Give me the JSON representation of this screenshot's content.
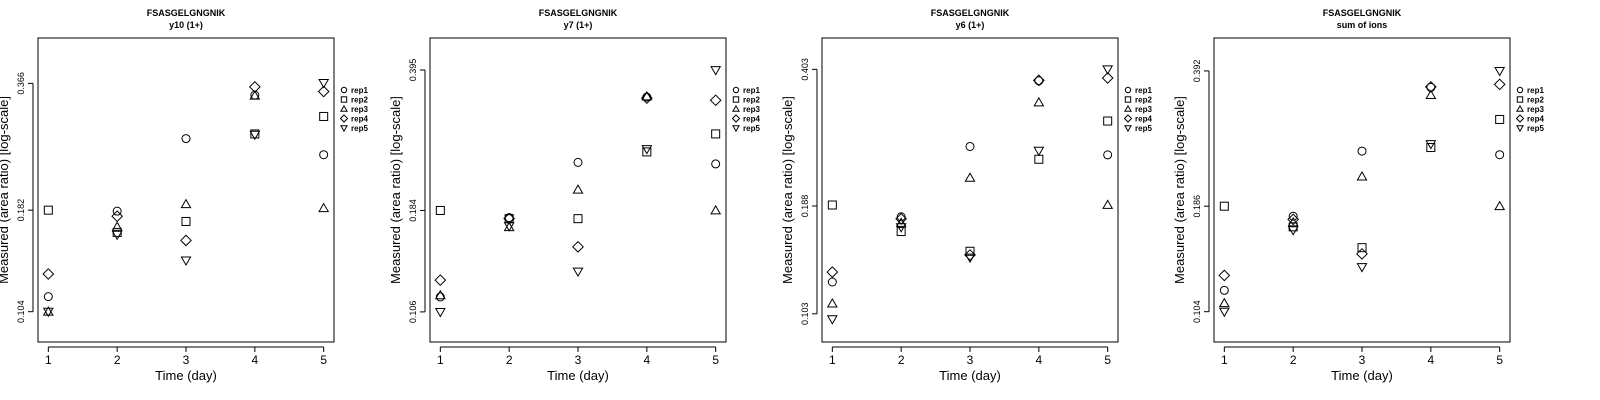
{
  "chart_data": [
    {
      "type": "scatter",
      "title": "FSASGELGNGNIK",
      "subtitle": "y10 (1+)",
      "xlabel": "Time (day)",
      "ylabel": "Measured (area ratio) [log-scale]",
      "x_ticks": [
        "1",
        "2",
        "3",
        "4",
        "5"
      ],
      "y_ticks": [
        {
          "value": 0.104,
          "label": "0.104"
        },
        {
          "value": 0.182,
          "label": "0.182"
        },
        {
          "value": 0.366,
          "label": "0.366"
        }
      ],
      "xlim": [
        0.85,
        5.15
      ],
      "ylim": [
        0.088,
        0.47
      ],
      "legend": [
        "rep1",
        "rep2",
        "rep3",
        "rep4",
        "rep5"
      ],
      "legend_placement": "right",
      "series": [
        {
          "name": "rep1",
          "marker": "circle",
          "points": [
            [
              1,
              0.113
            ],
            [
              2,
              0.181
            ],
            [
              3,
              0.27
            ],
            [
              4,
              0.343
            ],
            [
              5,
              0.247
            ]
          ]
        },
        {
          "name": "rep2",
          "marker": "square",
          "points": [
            [
              1,
              0.182
            ],
            [
              2,
              0.161
            ],
            [
              3,
              0.171
            ],
            [
              4,
              0.277
            ],
            [
              5,
              0.305
            ]
          ]
        },
        {
          "name": "rep3",
          "marker": "triangle-up",
          "points": [
            [
              1,
              0.104
            ],
            [
              2,
              0.166
            ],
            [
              3,
              0.188
            ],
            [
              4,
              0.342
            ],
            [
              5,
              0.184
            ]
          ]
        },
        {
          "name": "rep4",
          "marker": "diamond",
          "points": [
            [
              1,
              0.128
            ],
            [
              2,
              0.176
            ],
            [
              3,
              0.154
            ],
            [
              4,
              0.359
            ],
            [
              5,
              0.35
            ]
          ]
        },
        {
          "name": "rep5",
          "marker": "triangle-down",
          "points": [
            [
              1,
              0.104
            ],
            [
              2,
              0.159
            ],
            [
              3,
              0.138
            ],
            [
              4,
              0.276
            ],
            [
              5,
              0.367
            ]
          ]
        }
      ]
    },
    {
      "type": "scatter",
      "title": "FSASGELGNGNIK",
      "subtitle": "y7 (1+)",
      "xlabel": "Time (day)",
      "ylabel": "Measured (area ratio) [log-scale]",
      "x_ticks": [
        "1",
        "2",
        "3",
        "4",
        "5"
      ],
      "y_ticks": [
        {
          "value": 0.106,
          "label": "0.106"
        },
        {
          "value": 0.184,
          "label": "0.184"
        },
        {
          "value": 0.395,
          "label": "0.395"
        }
      ],
      "xlim": [
        0.85,
        5.15
      ],
      "ylim": [
        0.09,
        0.47
      ],
      "legend": [
        "rep1",
        "rep2",
        "rep3",
        "rep4",
        "rep5"
      ],
      "legend_placement": "right",
      "series": [
        {
          "name": "rep1",
          "marker": "circle",
          "points": [
            [
              1,
              0.115
            ],
            [
              2,
              0.177
            ],
            [
              3,
              0.239
            ],
            [
              4,
              0.341
            ],
            [
              5,
              0.237
            ]
          ]
        },
        {
          "name": "rep2",
          "marker": "square",
          "points": [
            [
              1,
              0.184
            ],
            [
              2,
              0.176
            ],
            [
              3,
              0.176
            ],
            [
              4,
              0.253
            ],
            [
              5,
              0.279
            ]
          ]
        },
        {
          "name": "rep3",
          "marker": "triangle-up",
          "points": [
            [
              1,
              0.116
            ],
            [
              2,
              0.168
            ],
            [
              3,
              0.206
            ],
            [
              4,
              0.342
            ],
            [
              5,
              0.184
            ]
          ]
        },
        {
          "name": "rep4",
          "marker": "diamond",
          "points": [
            [
              1,
              0.126
            ],
            [
              2,
              0.176
            ],
            [
              3,
              0.151
            ],
            [
              4,
              0.339
            ],
            [
              5,
              0.335
            ]
          ]
        },
        {
          "name": "rep5",
          "marker": "triangle-down",
          "points": [
            [
              1,
              0.106
            ],
            [
              2,
              0.169
            ],
            [
              3,
              0.132
            ],
            [
              4,
              0.257
            ],
            [
              5,
              0.395
            ]
          ]
        }
      ]
    },
    {
      "type": "scatter",
      "title": "FSASGELGNGNIK",
      "subtitle": "y6 (1+)",
      "xlabel": "Time (day)",
      "ylabel": "Measured (area ratio) [log-scale]",
      "x_ticks": [
        "1",
        "2",
        "3",
        "4",
        "5"
      ],
      "y_ticks": [
        {
          "value": 0.103,
          "label": "0.103"
        },
        {
          "value": 0.188,
          "label": "0.188"
        },
        {
          "value": 0.403,
          "label": "0.403"
        }
      ],
      "xlim": [
        0.85,
        5.15
      ],
      "ylim": [
        0.088,
        0.48
      ],
      "legend": [
        "rep1",
        "rep2",
        "rep3",
        "rep4",
        "rep5"
      ],
      "legend_placement": "right",
      "series": [
        {
          "name": "rep1",
          "marker": "circle",
          "points": [
            [
              1,
              0.123
            ],
            [
              2,
              0.177
            ],
            [
              3,
              0.262
            ],
            [
              4,
              0.378
            ],
            [
              5,
              0.25
            ]
          ]
        },
        {
          "name": "rep2",
          "marker": "square",
          "points": [
            [
              1,
              0.189
            ],
            [
              2,
              0.163
            ],
            [
              3,
              0.146
            ],
            [
              4,
              0.244
            ],
            [
              5,
              0.302
            ]
          ]
        },
        {
          "name": "rep3",
          "marker": "triangle-up",
          "points": [
            [
              1,
              0.109
            ],
            [
              2,
              0.171
            ],
            [
              3,
              0.22
            ],
            [
              4,
              0.335
            ],
            [
              5,
              0.189
            ]
          ]
        },
        {
          "name": "rep4",
          "marker": "diamond",
          "points": [
            [
              1,
              0.13
            ],
            [
              2,
              0.175
            ],
            [
              3,
              0.143
            ],
            [
              4,
              0.379
            ],
            [
              5,
              0.384
            ]
          ]
        },
        {
          "name": "rep5",
          "marker": "triangle-down",
          "points": [
            [
              1,
              0.1
            ],
            [
              2,
              0.167
            ],
            [
              3,
              0.141
            ],
            [
              4,
              0.256
            ],
            [
              5,
              0.403
            ]
          ]
        }
      ]
    },
    {
      "type": "scatter",
      "title": "FSASGELGNGNIK",
      "subtitle": "sum of ions",
      "xlabel": "Time (day)",
      "ylabel": "Measured (area ratio) [log-scale]",
      "x_ticks": [
        "1",
        "2",
        "3",
        "4",
        "5"
      ],
      "y_ticks": [
        {
          "value": 0.104,
          "label": "0.104"
        },
        {
          "value": 0.186,
          "label": "0.186"
        },
        {
          "value": 0.392,
          "label": "0.392"
        }
      ],
      "xlim": [
        0.85,
        5.15
      ],
      "ylim": [
        0.088,
        0.47
      ],
      "legend": [
        "rep1",
        "rep2",
        "rep3",
        "rep4",
        "rep5"
      ],
      "legend_placement": "right",
      "series": [
        {
          "name": "rep1",
          "marker": "circle",
          "points": [
            [
              1,
              0.117
            ],
            [
              2,
              0.176
            ],
            [
              3,
              0.252
            ],
            [
              4,
              0.358
            ],
            [
              5,
              0.247
            ]
          ]
        },
        {
          "name": "rep2",
          "marker": "square",
          "points": [
            [
              1,
              0.186
            ],
            [
              2,
              0.166
            ],
            [
              3,
              0.148
            ],
            [
              4,
              0.257
            ],
            [
              5,
              0.3
            ]
          ]
        },
        {
          "name": "rep3",
          "marker": "triangle-up",
          "points": [
            [
              1,
              0.109
            ],
            [
              2,
              0.17
            ],
            [
              3,
              0.219
            ],
            [
              4,
              0.343
            ],
            [
              5,
              0.186
            ]
          ]
        },
        {
          "name": "rep4",
          "marker": "diamond",
          "points": [
            [
              1,
              0.127
            ],
            [
              2,
              0.173
            ],
            [
              3,
              0.143
            ],
            [
              4,
              0.359
            ],
            [
              5,
              0.364
            ]
          ]
        },
        {
          "name": "rep5",
          "marker": "triangle-down",
          "points": [
            [
              1,
              0.104
            ],
            [
              2,
              0.163
            ],
            [
              3,
              0.133
            ],
            [
              4,
              0.262
            ],
            [
              5,
              0.392
            ]
          ]
        }
      ]
    }
  ]
}
